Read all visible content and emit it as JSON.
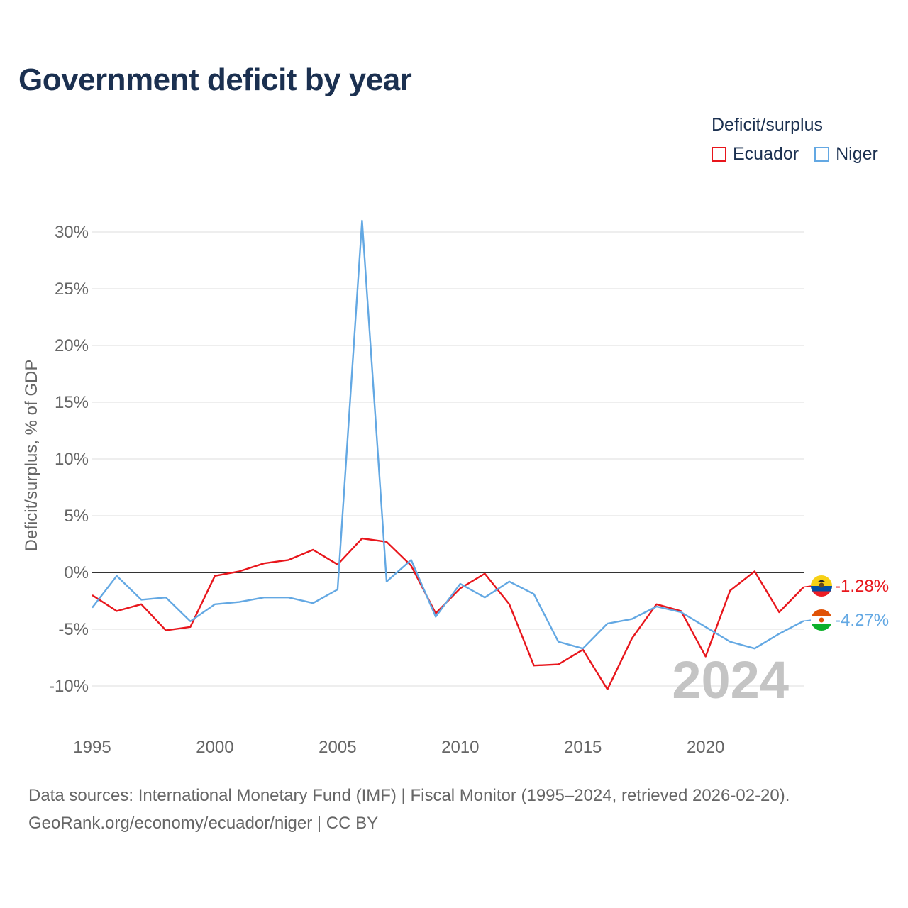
{
  "title": "Government deficit by year",
  "legend": {
    "title": "Deficit/surplus",
    "items": [
      {
        "label": "Ecuador",
        "color": "#e8161c"
      },
      {
        "label": "Niger",
        "color": "#63a8e3"
      }
    ]
  },
  "footer": {
    "sources": "Data sources: International Monetary Fund (IMF) | Fiscal Monitor (1995–2024, retrieved 2026-02-20).",
    "credit": "GeoRank.org/economy/ecuador/niger | CC BY"
  },
  "chart_data": {
    "type": "line",
    "title": "Government deficit by year",
    "xlabel": "",
    "ylabel": "Deficit/surplus, % of GDP",
    "xlim": [
      1995,
      2024
    ],
    "ylim": [
      -12,
      32
    ],
    "x_ticks": [
      1995,
      2000,
      2005,
      2010,
      2015,
      2020
    ],
    "y_ticks": [
      -10,
      -5,
      0,
      5,
      10,
      15,
      20,
      25,
      30
    ],
    "y_tick_labels": [
      "-10%",
      "-5%",
      "0%",
      "5%",
      "10%",
      "15%",
      "20%",
      "25%",
      "30%"
    ],
    "year_watermark": "2024",
    "zero_line": true,
    "grid": true,
    "x": [
      1995,
      1996,
      1997,
      1998,
      1999,
      2000,
      2001,
      2002,
      2003,
      2004,
      2005,
      2006,
      2007,
      2008,
      2009,
      2010,
      2011,
      2012,
      2013,
      2014,
      2015,
      2016,
      2017,
      2018,
      2019,
      2020,
      2021,
      2022,
      2023,
      2024
    ],
    "series": [
      {
        "name": "Ecuador",
        "color": "#e8161c",
        "end_label": "-1.28%",
        "values": [
          -2.0,
          -3.4,
          -2.8,
          -5.1,
          -4.8,
          -0.3,
          0.1,
          0.8,
          1.1,
          2.0,
          0.7,
          3.0,
          2.7,
          0.6,
          -3.6,
          -1.4,
          -0.1,
          -2.8,
          -8.2,
          -8.1,
          -6.8,
          -10.3,
          -5.8,
          -2.8,
          -3.4,
          -7.4,
          -1.6,
          0.1,
          -3.5,
          -1.28
        ]
      },
      {
        "name": "Niger",
        "color": "#63a8e3",
        "end_label": "-4.27%",
        "values": [
          -3.1,
          -0.3,
          -2.4,
          -2.2,
          -4.3,
          -2.8,
          -2.6,
          -2.2,
          -2.2,
          -2.7,
          -1.5,
          31.0,
          -0.8,
          1.1,
          -3.9,
          -1.0,
          -2.2,
          -0.8,
          -1.9,
          -6.1,
          -6.7,
          -4.5,
          -4.1,
          -3.0,
          -3.5,
          -4.8,
          -6.1,
          -6.7,
          -5.4,
          -4.27
        ]
      }
    ]
  }
}
